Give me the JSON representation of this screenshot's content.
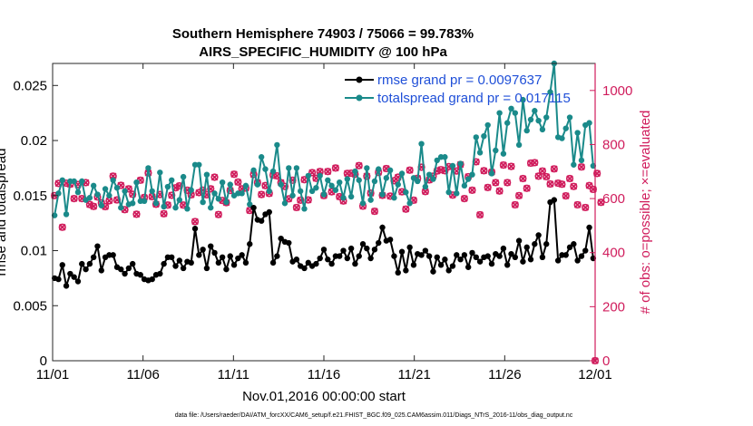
{
  "chart_data": {
    "type": "line",
    "title_line1": "Southern Hemisphere 74903 / 75066 = 99.783%",
    "title_line2": "AIRS_SPECIFIC_HUMIDITY @ 100 hPa",
    "xlabel": "Nov.01,2016 00:00:00 start",
    "ylabel_left": "rmse and totalspread",
    "ylabel_right": "# of obs: o=possible; ×=evaluated",
    "footer": "data file: /Users/raeder/DAI/ATM_forcXX/CAM6_setup/f.e21.FHIST_BGC.f09_025.CAM6assim.011/Diags_NTrS_2016-11/obs_diag_output.nc",
    "xlim": [
      0,
      30
    ],
    "ylim_left": [
      0,
      0.027
    ],
    "ylim_right": [
      0,
      1100
    ],
    "x_ticks": [
      0,
      5,
      10,
      15,
      20,
      25,
      30
    ],
    "x_tick_labels": [
      "11/01",
      "11/06",
      "11/11",
      "11/16",
      "11/21",
      "11/26",
      "12/01"
    ],
    "y_left_ticks": [
      0,
      0.005,
      0.01,
      0.015,
      0.02,
      0.025
    ],
    "y_left_tick_labels": [
      "0",
      "0.005",
      "0.01",
      "0.015",
      "0.02",
      "0.025"
    ],
    "y_right_ticks": [
      0,
      200,
      400,
      600,
      800,
      1000
    ],
    "y_right_tick_labels": [
      "0",
      "200",
      "400",
      "600",
      "800",
      "1000"
    ],
    "grid": false,
    "legend_position": "top-right",
    "colors": {
      "rmse": "#000000",
      "totalspread": "#1a8a8a",
      "obs": "#d01c5c",
      "axis_right": "#d01c5c",
      "legend_text": "#1f4fd8"
    },
    "series": [
      {
        "name": "rmse grand pr = 0.0097637",
        "values": [
          0.0075,
          0.0074,
          0.0087,
          0.0068,
          0.0079,
          0.0076,
          0.0072,
          0.0088,
          0.0083,
          0.0088,
          0.0094,
          0.0104,
          0.0082,
          0.0094,
          0.0096,
          0.0096,
          0.0085,
          0.0083,
          0.0079,
          0.0084,
          0.0088,
          0.0079,
          0.0078,
          0.0074,
          0.0073,
          0.0074,
          0.0078,
          0.0079,
          0.0088,
          0.0094,
          0.0094,
          0.0086,
          0.0091,
          0.0084,
          0.009,
          0.0089,
          0.012,
          0.0096,
          0.0101,
          0.0084,
          0.0104,
          0.0098,
          0.0089,
          0.0094,
          0.0083,
          0.0095,
          0.0087,
          0.0093,
          0.0096,
          0.0089,
          0.0106,
          0.0139,
          0.0128,
          0.0127,
          0.0133,
          0.0135,
          0.0089,
          0.0095,
          0.0111,
          0.0108,
          0.0107,
          0.009,
          0.0092,
          0.0086,
          0.0084,
          0.0089,
          0.0086,
          0.0088,
          0.0093,
          0.0101,
          0.0092,
          0.0088,
          0.0095,
          0.0095,
          0.01,
          0.0093,
          0.0102,
          0.0088,
          0.0095,
          0.0106,
          0.0102,
          0.0093,
          0.0101,
          0.0107,
          0.0121,
          0.0109,
          0.011,
          0.0095,
          0.008,
          0.0099,
          0.0082,
          0.0103,
          0.0087,
          0.0097,
          0.0096,
          0.01,
          0.0095,
          0.0081,
          0.0094,
          0.0087,
          0.0092,
          0.0082,
          0.0086,
          0.0096,
          0.0092,
          0.0096,
          0.0085,
          0.0098,
          0.0094,
          0.009,
          0.0094,
          0.0095,
          0.0088,
          0.0097,
          0.0095,
          0.0102,
          0.0087,
          0.0097,
          0.0094,
          0.0109,
          0.009,
          0.0103,
          0.0092,
          0.0106,
          0.0114,
          0.0094,
          0.0106,
          0.0144,
          0.0146,
          0.0091,
          0.0096,
          0.0096,
          0.0103,
          0.0106,
          0.0091,
          0.0095,
          0.01,
          0.0121,
          0.0093
        ]
      },
      {
        "name": "totalspread grand pr = 0.017115",
        "values": [
          0.0132,
          0.0152,
          0.0164,
          0.0133,
          0.0163,
          0.0163,
          0.0153,
          0.0163,
          0.0146,
          0.0148,
          0.0159,
          0.0151,
          0.0141,
          0.0156,
          0.015,
          0.0164,
          0.0157,
          0.0139,
          0.0154,
          0.0142,
          0.0143,
          0.0162,
          0.0145,
          0.0145,
          0.0175,
          0.0154,
          0.0143,
          0.0171,
          0.014,
          0.0158,
          0.0164,
          0.0139,
          0.0146,
          0.0167,
          0.0138,
          0.0155,
          0.0178,
          0.0178,
          0.0144,
          0.0169,
          0.0139,
          0.0152,
          0.0147,
          0.0162,
          0.0144,
          0.016,
          0.015,
          0.0152,
          0.0152,
          0.0159,
          0.0142,
          0.0173,
          0.016,
          0.0185,
          0.0174,
          0.0154,
          0.0172,
          0.0196,
          0.016,
          0.0143,
          0.0175,
          0.015,
          0.0175,
          0.0154,
          0.0138,
          0.0168,
          0.0154,
          0.0157,
          0.0168,
          0.0151,
          0.0164,
          0.0159,
          0.0155,
          0.0162,
          0.0148,
          0.0165,
          0.0149,
          0.0172,
          0.0164,
          0.0143,
          0.0175,
          0.0146,
          0.0163,
          0.0174,
          0.0151,
          0.0166,
          0.0173,
          0.0148,
          0.016,
          0.017,
          0.0153,
          0.0143,
          0.0166,
          0.0163,
          0.0197,
          0.0158,
          0.0169,
          0.0165,
          0.0182,
          0.0185,
          0.0185,
          0.0153,
          0.0177,
          0.0152,
          0.0179,
          0.0159,
          0.0165,
          0.0169,
          0.0203,
          0.0189,
          0.0204,
          0.0214,
          0.017,
          0.0191,
          0.0225,
          0.0188,
          0.0216,
          0.0229,
          0.0225,
          0.0196,
          0.0237,
          0.0209,
          0.0219,
          0.0227,
          0.0218,
          0.021,
          0.0221,
          0.0244,
          0.027,
          0.0203,
          0.0202,
          0.0211,
          0.0221,
          0.0178,
          0.0207,
          0.0182,
          0.0214,
          0.0216,
          0.0177
        ]
      },
      {
        "name": "# of obs (possible)",
        "values": [
          611,
          656,
          494,
          657,
          653,
          600,
          652,
          600,
          659,
          578,
          571,
          606,
          584,
          570,
          592,
          683,
          595,
          649,
          559,
          636,
          616,
          542,
          668,
          604,
          695,
          607,
          579,
          615,
          544,
          576,
          612,
          640,
          647,
          576,
          631,
          614,
          515,
          622,
          631,
          614,
          636,
          679,
          541,
          593,
          585,
          630,
          690,
          661,
          636,
          639,
          556,
          689,
          659,
          615,
          648,
          619,
          687,
          684,
          659,
          645,
          599,
          668,
          567,
          594,
          670,
          595,
          696,
          675,
          700,
          611,
          700,
          625,
          713,
          607,
          591,
          693,
          694,
          690,
          722,
          572,
          683,
          620,
          553,
          697,
          612,
          711,
          609,
          666,
          679,
          625,
          561,
          705,
          594,
          675,
          716,
          626,
          669,
          683,
          702,
          707,
          703,
          718,
          613,
          702,
          726,
          600,
          681,
          631,
          736,
          540,
          703,
          641,
          698,
          659,
          628,
          724,
          659,
          719,
          577,
          611,
          674,
          638,
          731,
          733,
          683,
          702,
          681,
          654,
          710,
          657,
          653,
          610,
          674,
          645,
          577,
          717,
          567,
          648,
          634,
          693,
          586
        ]
      }
    ]
  },
  "legend": {
    "rmse_label": "rmse grand pr = 0.0097637",
    "spread_label": "totalspread grand pr = 0.017115"
  }
}
